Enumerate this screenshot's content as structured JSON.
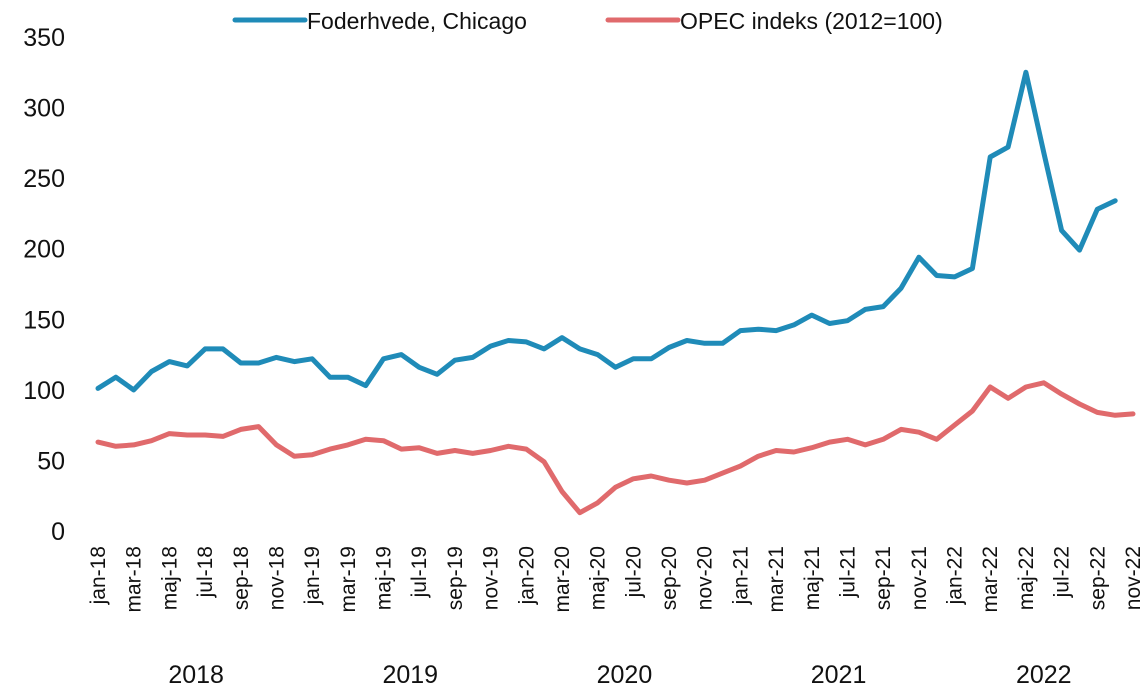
{
  "chart_data": {
    "type": "line",
    "categories": [
      "jan-18",
      null,
      "mar-18",
      null,
      "maj-18",
      null,
      "jul-18",
      null,
      "sep-18",
      null,
      "nov-18",
      null,
      "jan-19",
      null,
      "mar-19",
      null,
      "maj-19",
      null,
      "jul-19",
      null,
      "sep-19",
      null,
      "nov-19",
      null,
      "jan-20",
      null,
      "mar-20",
      null,
      "maj-20",
      null,
      "jul-20",
      null,
      "sep-20",
      null,
      "nov-20",
      null,
      "jan-21",
      null,
      "mar-21",
      null,
      "maj-21",
      null,
      "jul-21",
      null,
      "sep-21",
      null,
      "nov-21",
      null,
      "jan-22",
      null,
      "mar-22",
      null,
      "maj-22",
      null,
      "jul-22",
      null,
      "sep-22",
      null,
      "nov-22"
    ],
    "year_labels": [
      "2018",
      "2019",
      "2020",
      "2021",
      "2022"
    ],
    "series": [
      {
        "name": "Foderhvede, Chicago",
        "color": "#1f8bb8",
        "values": [
          101,
          109,
          100,
          113,
          120,
          117,
          129,
          129,
          119,
          119,
          123,
          120,
          122,
          109,
          109,
          103,
          122,
          125,
          116,
          111,
          121,
          123,
          131,
          135,
          134,
          129,
          137,
          129,
          125,
          116,
          122,
          122,
          130,
          135,
          133,
          133,
          142,
          143,
          142,
          146,
          153,
          147,
          149,
          157,
          159,
          172,
          194,
          181,
          180,
          186,
          265,
          272,
          325,
          268,
          213,
          199,
          228,
          234,
          null
        ]
      },
      {
        "name": "OPEC indeks  (2012=100)",
        "color": "#e06a6c",
        "values": [
          63,
          60,
          61,
          64,
          69,
          68,
          68,
          67,
          72,
          74,
          61,
          53,
          54,
          58,
          61,
          65,
          64,
          58,
          59,
          55,
          57,
          55,
          57,
          60,
          58,
          49,
          28,
          13,
          20,
          31,
          37,
          39,
          36,
          34,
          36,
          41,
          46,
          53,
          57,
          56,
          59,
          63,
          65,
          61,
          65,
          72,
          70,
          65,
          75,
          85,
          102,
          94,
          102,
          105,
          97,
          90,
          84,
          82,
          83
        ]
      }
    ],
    "ylim": [
      0,
      350
    ],
    "yticks": [
      0,
      50,
      100,
      150,
      200,
      250,
      300,
      350
    ],
    "grid": false,
    "legend": "top"
  }
}
